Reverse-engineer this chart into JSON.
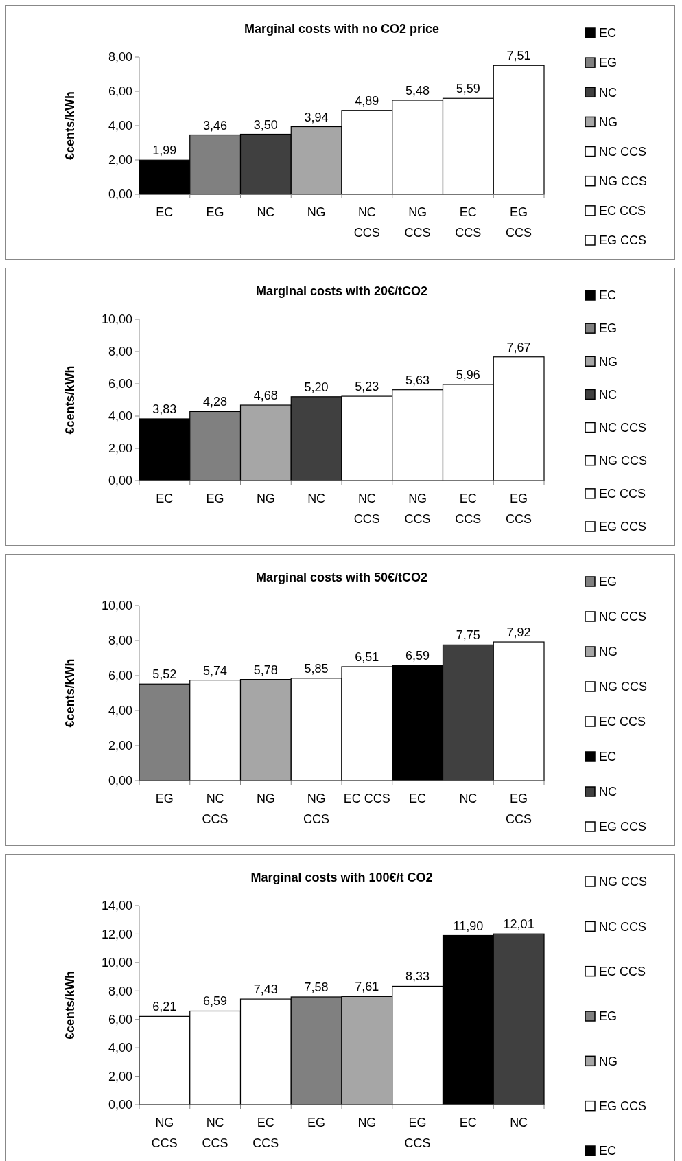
{
  "chart_data": [
    {
      "type": "bar",
      "stacked": true,
      "title": "Marginal costs with no CO2 price",
      "ylabel": "€cents/kWh",
      "legend": "right",
      "categories": [
        "EC",
        "EG",
        "NC",
        "NG",
        "NC\nCCS",
        "NG\nCCS",
        "EC\nCCS",
        "EG\nCCS"
      ],
      "ylim": [
        0,
        8
      ],
      "yticks": [
        {
          "value": 0,
          "label": "0,00"
        },
        {
          "value": 2,
          "label": "2,00"
        },
        {
          "value": 4,
          "label": "4,00"
        },
        {
          "value": 6,
          "label": "6,00"
        },
        {
          "value": 8,
          "label": "8,00"
        }
      ],
      "series": [
        {
          "name": "EC",
          "color": "#000000",
          "values": [
            1.99,
            null,
            null,
            null,
            null,
            null,
            null,
            null
          ],
          "value_labels": [
            "1,99",
            null,
            null,
            null,
            null,
            null,
            null,
            null
          ]
        },
        {
          "name": "EG",
          "color": "#808080",
          "values": [
            null,
            3.46,
            null,
            null,
            null,
            null,
            null,
            null
          ],
          "value_labels": [
            null,
            "3,46",
            null,
            null,
            null,
            null,
            null,
            null
          ]
        },
        {
          "name": "NC",
          "color": "#404040",
          "values": [
            null,
            null,
            3.5,
            null,
            null,
            null,
            null,
            null
          ],
          "value_labels": [
            null,
            null,
            "3,50",
            null,
            null,
            null,
            null,
            null
          ]
        },
        {
          "name": "NG",
          "color": "#a6a6a6",
          "values": [
            null,
            null,
            null,
            3.94,
            null,
            null,
            null,
            null
          ],
          "value_labels": [
            null,
            null,
            null,
            "3,94",
            null,
            null,
            null,
            null
          ]
        },
        {
          "name": "NC CCS",
          "color": "#ffffff",
          "values": [
            null,
            null,
            null,
            null,
            4.89,
            null,
            null,
            null
          ],
          "value_labels": [
            null,
            null,
            null,
            null,
            "4,89",
            null,
            null,
            null
          ]
        },
        {
          "name": "NG CCS",
          "color": "#ffffff",
          "values": [
            null,
            null,
            null,
            null,
            null,
            5.48,
            null,
            null
          ],
          "value_labels": [
            null,
            null,
            null,
            null,
            null,
            "5,48",
            null,
            null
          ]
        },
        {
          "name": "EC CCS",
          "color": "#ffffff",
          "values": [
            null,
            null,
            null,
            null,
            null,
            null,
            5.59,
            null
          ],
          "value_labels": [
            null,
            null,
            null,
            null,
            null,
            null,
            "5,59",
            null
          ]
        },
        {
          "name": "EG CCS",
          "color": "#ffffff",
          "values": [
            null,
            null,
            null,
            null,
            null,
            null,
            null,
            7.51
          ],
          "value_labels": [
            null,
            null,
            null,
            null,
            null,
            null,
            null,
            "7,51"
          ]
        }
      ]
    },
    {
      "type": "bar",
      "stacked": true,
      "title": "Marginal costs with 20€/tCO2",
      "ylabel": "€cents/kWh",
      "legend": "right",
      "categories": [
        "EC",
        "EG",
        "NG",
        "NC",
        "NC\nCCS",
        "NG\nCCS",
        "EC\nCCS",
        "EG\nCCS"
      ],
      "ylim": [
        0,
        10
      ],
      "yticks": [
        {
          "value": 0,
          "label": "0,00"
        },
        {
          "value": 2,
          "label": "2,00"
        },
        {
          "value": 4,
          "label": "4,00"
        },
        {
          "value": 6,
          "label": "6,00"
        },
        {
          "value": 8,
          "label": "8,00"
        },
        {
          "value": 10,
          "label": "10,00"
        }
      ],
      "series": [
        {
          "name": "EC",
          "color": "#000000",
          "values": [
            3.83,
            null,
            null,
            null,
            null,
            null,
            null,
            null
          ],
          "value_labels": [
            "3,83",
            null,
            null,
            null,
            null,
            null,
            null,
            null
          ]
        },
        {
          "name": "EG",
          "color": "#808080",
          "values": [
            null,
            4.28,
            null,
            null,
            null,
            null,
            null,
            null
          ],
          "value_labels": [
            null,
            "4,28",
            null,
            null,
            null,
            null,
            null,
            null
          ]
        },
        {
          "name": "NG",
          "color": "#a6a6a6",
          "values": [
            null,
            null,
            4.68,
            null,
            null,
            null,
            null,
            null
          ],
          "value_labels": [
            null,
            null,
            "4,68",
            null,
            null,
            null,
            null,
            null
          ]
        },
        {
          "name": "NC",
          "color": "#404040",
          "values": [
            null,
            null,
            null,
            5.2,
            null,
            null,
            null,
            null
          ],
          "value_labels": [
            null,
            null,
            null,
            "5,20",
            null,
            null,
            null,
            null
          ]
        },
        {
          "name": "NC CCS",
          "color": "#ffffff",
          "values": [
            null,
            null,
            null,
            null,
            5.23,
            null,
            null,
            null
          ],
          "value_labels": [
            null,
            null,
            null,
            null,
            "5,23",
            null,
            null,
            null
          ]
        },
        {
          "name": "NG CCS",
          "color": "#ffffff",
          "values": [
            null,
            null,
            null,
            null,
            null,
            5.63,
            null,
            null
          ],
          "value_labels": [
            null,
            null,
            null,
            null,
            null,
            "5,63",
            null,
            null
          ]
        },
        {
          "name": "EC CCS",
          "color": "#ffffff",
          "values": [
            null,
            null,
            null,
            null,
            null,
            null,
            5.96,
            null
          ],
          "value_labels": [
            null,
            null,
            null,
            null,
            null,
            null,
            "5,96",
            null
          ]
        },
        {
          "name": "EG CCS",
          "color": "#ffffff",
          "values": [
            null,
            null,
            null,
            null,
            null,
            null,
            null,
            7.67
          ],
          "value_labels": [
            null,
            null,
            null,
            null,
            null,
            null,
            null,
            "7,67"
          ]
        }
      ]
    },
    {
      "type": "bar",
      "stacked": true,
      "title": "Marginal costs with 50€/tCO2",
      "ylabel": "€cents/kWh",
      "legend": "right",
      "categories": [
        "EG",
        "NC\nCCS",
        "NG",
        "NG\nCCS",
        "EC CCS",
        "EC",
        "NC",
        "EG\nCCS"
      ],
      "ylim": [
        0,
        10
      ],
      "yticks": [
        {
          "value": 0,
          "label": "0,00"
        },
        {
          "value": 2,
          "label": "2,00"
        },
        {
          "value": 4,
          "label": "4,00"
        },
        {
          "value": 6,
          "label": "6,00"
        },
        {
          "value": 8,
          "label": "8,00"
        },
        {
          "value": 10,
          "label": "10,00"
        }
      ],
      "series": [
        {
          "name": "EG",
          "color": "#808080",
          "values": [
            5.52,
            null,
            null,
            null,
            null,
            null,
            null,
            null
          ],
          "value_labels": [
            "5,52",
            null,
            null,
            null,
            null,
            null,
            null,
            null
          ]
        },
        {
          "name": "NC CCS",
          "color": "#ffffff",
          "values": [
            null,
            5.74,
            null,
            null,
            null,
            null,
            null,
            null
          ],
          "value_labels": [
            null,
            "5,74",
            null,
            null,
            null,
            null,
            null,
            null
          ]
        },
        {
          "name": "NG",
          "color": "#a6a6a6",
          "values": [
            null,
            null,
            5.78,
            null,
            null,
            null,
            null,
            null
          ],
          "value_labels": [
            null,
            null,
            "5,78",
            null,
            null,
            null,
            null,
            null
          ]
        },
        {
          "name": "NG CCS",
          "color": "#ffffff",
          "values": [
            null,
            null,
            null,
            5.85,
            null,
            null,
            null,
            null
          ],
          "value_labels": [
            null,
            null,
            null,
            "5,85",
            null,
            null,
            null,
            null
          ]
        },
        {
          "name": "EC CCS",
          "color": "#ffffff",
          "values": [
            null,
            null,
            null,
            null,
            6.51,
            null,
            null,
            null
          ],
          "value_labels": [
            null,
            null,
            null,
            null,
            "6,51",
            null,
            null,
            null
          ]
        },
        {
          "name": "EC",
          "color": "#000000",
          "values": [
            null,
            null,
            null,
            null,
            null,
            6.59,
            null,
            null
          ],
          "value_labels": [
            null,
            null,
            null,
            null,
            null,
            "6,59",
            null,
            null
          ]
        },
        {
          "name": "NC",
          "color": "#404040",
          "values": [
            null,
            null,
            null,
            null,
            null,
            null,
            7.75,
            null
          ],
          "value_labels": [
            null,
            null,
            null,
            null,
            null,
            null,
            "7,75",
            null
          ]
        },
        {
          "name": "EG CCS",
          "color": "#ffffff",
          "values": [
            null,
            null,
            null,
            null,
            null,
            null,
            null,
            7.92
          ],
          "value_labels": [
            null,
            null,
            null,
            null,
            null,
            null,
            null,
            "7,92"
          ]
        }
      ]
    },
    {
      "type": "bar",
      "stacked": true,
      "title": "Marginal costs with 100€/t CO2",
      "ylabel": "€cents/kWh",
      "legend": "right",
      "categories": [
        "NG\nCCS",
        "NC\nCCS",
        "EC\nCCS",
        "EG",
        "NG",
        "EG\nCCS",
        "EC",
        "NC"
      ],
      "ylim": [
        0,
        14
      ],
      "yticks": [
        {
          "value": 0,
          "label": "0,00"
        },
        {
          "value": 2,
          "label": "2,00"
        },
        {
          "value": 4,
          "label": "4,00"
        },
        {
          "value": 6,
          "label": "6,00"
        },
        {
          "value": 8,
          "label": "8,00"
        },
        {
          "value": 10,
          "label": "10,00"
        },
        {
          "value": 12,
          "label": "12,00"
        },
        {
          "value": 14,
          "label": "14,00"
        }
      ],
      "series": [
        {
          "name": "NG CCS",
          "color": "#ffffff",
          "values": [
            6.21,
            null,
            null,
            null,
            null,
            null,
            null,
            null
          ],
          "value_labels": [
            "6,21",
            null,
            null,
            null,
            null,
            null,
            null,
            null
          ]
        },
        {
          "name": "NC CCS",
          "color": "#ffffff",
          "values": [
            null,
            6.59,
            null,
            null,
            null,
            null,
            null,
            null
          ],
          "value_labels": [
            null,
            "6,59",
            null,
            null,
            null,
            null,
            null,
            null
          ]
        },
        {
          "name": "EC CCS",
          "color": "#ffffff",
          "values": [
            null,
            null,
            7.43,
            null,
            null,
            null,
            null,
            null
          ],
          "value_labels": [
            null,
            null,
            "7,43",
            null,
            null,
            null,
            null,
            null
          ]
        },
        {
          "name": "EG",
          "color": "#808080",
          "values": [
            null,
            null,
            null,
            7.58,
            null,
            null,
            null,
            null
          ],
          "value_labels": [
            null,
            null,
            null,
            "7,58",
            null,
            null,
            null,
            null
          ]
        },
        {
          "name": "NG",
          "color": "#a6a6a6",
          "values": [
            null,
            null,
            null,
            null,
            7.61,
            null,
            null,
            null
          ],
          "value_labels": [
            null,
            null,
            null,
            null,
            "7,61",
            null,
            null,
            null
          ]
        },
        {
          "name": "EG CCS",
          "color": "#ffffff",
          "values": [
            null,
            null,
            null,
            null,
            null,
            8.33,
            null,
            null
          ],
          "value_labels": [
            null,
            null,
            null,
            null,
            null,
            "8,33",
            null,
            null
          ]
        },
        {
          "name": "EC",
          "color": "#000000",
          "values": [
            null,
            null,
            null,
            null,
            null,
            null,
            11.9,
            null
          ],
          "value_labels": [
            null,
            null,
            null,
            null,
            null,
            null,
            "11,90",
            null
          ]
        },
        {
          "color": "#404040",
          "values": [
            null,
            null,
            null,
            null,
            null,
            null,
            null,
            12.01
          ],
          "value_labels": [
            null,
            null,
            null,
            null,
            null,
            null,
            null,
            "12,01"
          ]
        }
      ]
    }
  ]
}
